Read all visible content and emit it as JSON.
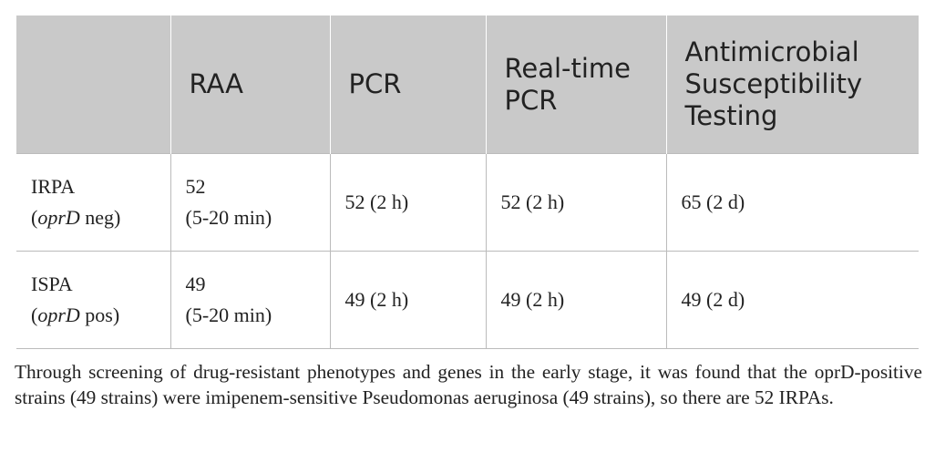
{
  "table": {
    "header": [
      "",
      "RAA",
      "PCR",
      "Real-time PCR",
      "Antimicrobial Susceptibility Testing"
    ],
    "rows": [
      {
        "label": {
          "line1": "IRPA",
          "pre": "(",
          "gene": "oprD",
          "post": " neg)"
        },
        "cells": [
          [
            "52",
            "(5-20 min)"
          ],
          "52 (2 h)",
          "52 (2 h)",
          "65 (2 d)"
        ]
      },
      {
        "label": {
          "line1": "ISPA",
          "pre": "(",
          "gene": "oprD",
          "post": " pos)"
        },
        "cells": [
          [
            "49",
            "(5-20 min)"
          ],
          "49 (2 h)",
          "49 (2 h)",
          "49 (2 d)"
        ]
      }
    ]
  },
  "footnote": "Through screening of drug-resistant phenotypes and genes in the early stage, it was found that the oprD-positive strains (49 strains) were imipenem-sensitive Pseudomonas aeruginosa (49 strains), so there are 52 IRPAs."
}
